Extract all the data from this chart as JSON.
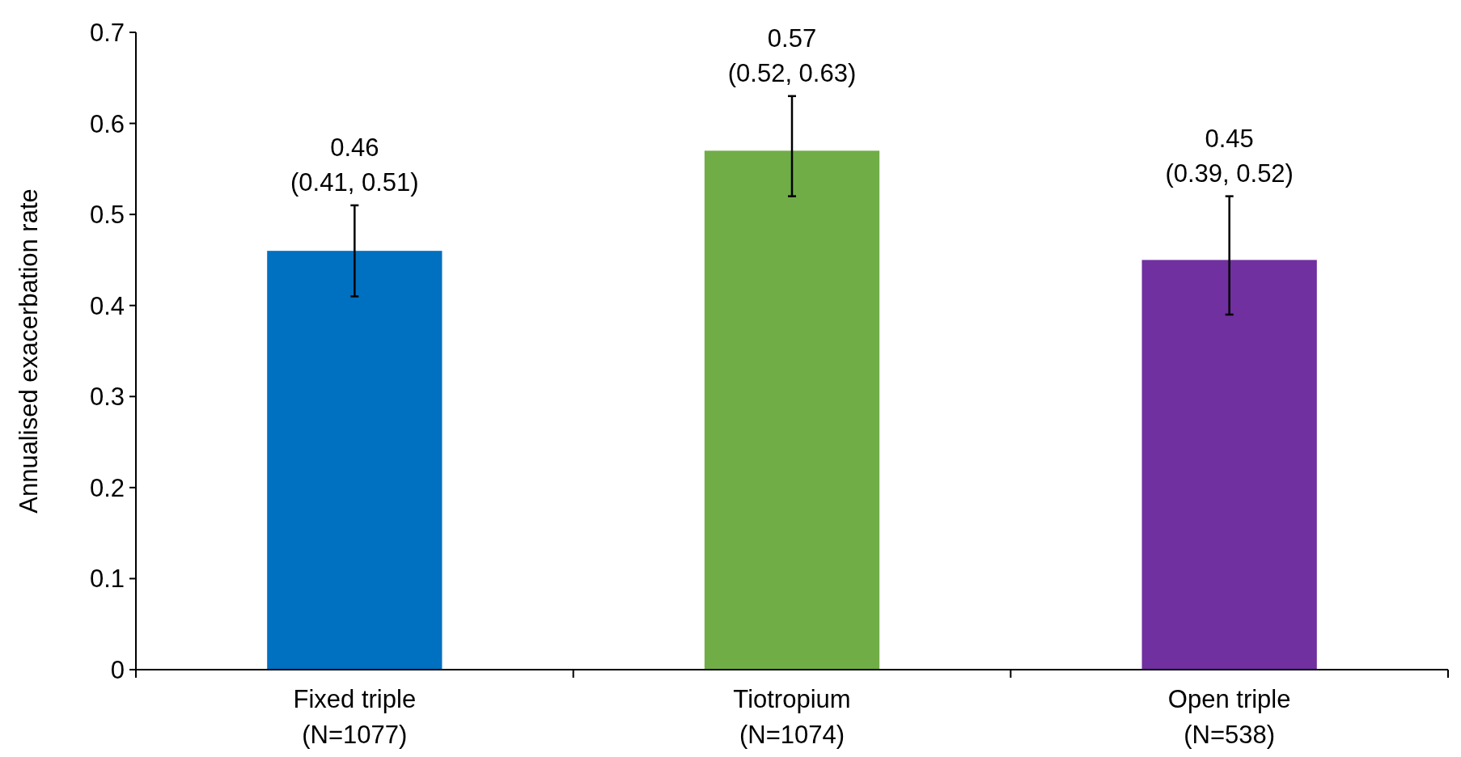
{
  "chart_data": {
    "type": "bar",
    "ylabel": "Annualised exacerbation rate",
    "categories": [
      "Fixed triple\n(N=1077)",
      "Tiotropium\n(N=1074)",
      "Open triple\n(N=538)"
    ],
    "values": [
      0.46,
      0.57,
      0.45
    ],
    "colors": [
      "#0070c0",
      "#70ad47",
      "#7030a0"
    ],
    "errors": [
      [
        0.41,
        0.51
      ],
      [
        0.52,
        0.63
      ],
      [
        0.39,
        0.52
      ]
    ],
    "value_labels": [
      "0.46\n(0.41, 0.51)",
      "0.57\n(0.52, 0.63)",
      "0.45\n(0.39, 0.52)"
    ],
    "ylim": [
      0,
      0.7
    ],
    "yticks": [
      0,
      0.1,
      0.2,
      0.3,
      0.4,
      0.5,
      0.6,
      0.7
    ],
    "grid": false
  }
}
